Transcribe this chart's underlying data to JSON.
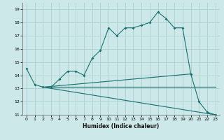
{
  "xlabel": "Humidex (Indice chaleur)",
  "ylabel": "",
  "bg_color": "#cce8e8",
  "grid_color": "#aad0d0",
  "line_color": "#1a7070",
  "ylim": [
    11,
    19.5
  ],
  "xlim": [
    -0.5,
    23.5
  ],
  "yticks": [
    11,
    12,
    13,
    14,
    15,
    16,
    17,
    18,
    19
  ],
  "xticks": [
    0,
    1,
    2,
    3,
    4,
    5,
    6,
    7,
    8,
    9,
    10,
    11,
    12,
    13,
    14,
    15,
    16,
    17,
    18,
    19,
    20,
    21,
    22,
    23
  ],
  "lines": [
    {
      "x": [
        0,
        1,
        2,
        3,
        4,
        5,
        6,
        7,
        8,
        9,
        10,
        11,
        12,
        13,
        14,
        15,
        16,
        17,
        18,
        19,
        20,
        21,
        22,
        23
      ],
      "y": [
        14.5,
        13.3,
        13.1,
        13.1,
        13.7,
        14.3,
        14.3,
        14.0,
        15.3,
        15.9,
        17.6,
        17.0,
        17.6,
        17.6,
        17.8,
        18.0,
        18.8,
        18.3,
        17.6,
        17.6,
        14.1,
        12.0,
        11.2,
        11.0
      ],
      "marker": true
    },
    {
      "x": [
        2,
        23
      ],
      "y": [
        13.1,
        11.0
      ],
      "marker": false
    },
    {
      "x": [
        2,
        20
      ],
      "y": [
        13.1,
        14.1
      ],
      "marker": false
    },
    {
      "x": [
        2,
        23
      ],
      "y": [
        13.1,
        13.1
      ],
      "marker": false
    }
  ]
}
